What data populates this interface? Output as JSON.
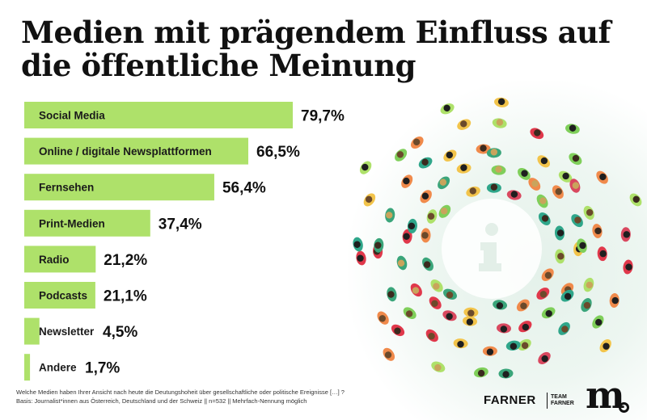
{
  "title": "Medien mit prägendem Einfluss auf die öffentliche Meinung",
  "chart_data": {
    "type": "bar",
    "orientation": "horizontal",
    "categories": [
      "Social Media",
      "Online / digitale Newsplattformen",
      "Fernsehen",
      "Print-Medien",
      "Radio",
      "Podcasts",
      "Newsletter",
      "Andere"
    ],
    "values": [
      79.7,
      66.5,
      56.4,
      37.4,
      21.2,
      21.1,
      4.5,
      1.7
    ],
    "value_labels": [
      "79,7%",
      "66,5%",
      "56,4%",
      "37,4%",
      "21,2%",
      "21,1%",
      "4,5%",
      "1,7%"
    ],
    "bar_color": "#aee16a",
    "grid": false,
    "legend": "none"
  },
  "footnote": {
    "line1": "Welche Medien haben Ihrer Ansicht nach heute die Deutungshoheit über gesellschaftliche oder politische Ereignisse […] ?",
    "line2": "Basis: Journalist*innen aus Österreich, Deutschland und der Schweiz  || n=532 || Mehrfach-Nennung möglich"
  },
  "logos": {
    "farner": "FARNER",
    "team_farner": "TEAM FARNER",
    "m": "m"
  },
  "illustration": {
    "icon": "info-icon",
    "accent_colors": [
      "#e0384b",
      "#aee16a",
      "#2fa68a",
      "#f2c44b",
      "#1f1f1f"
    ]
  }
}
